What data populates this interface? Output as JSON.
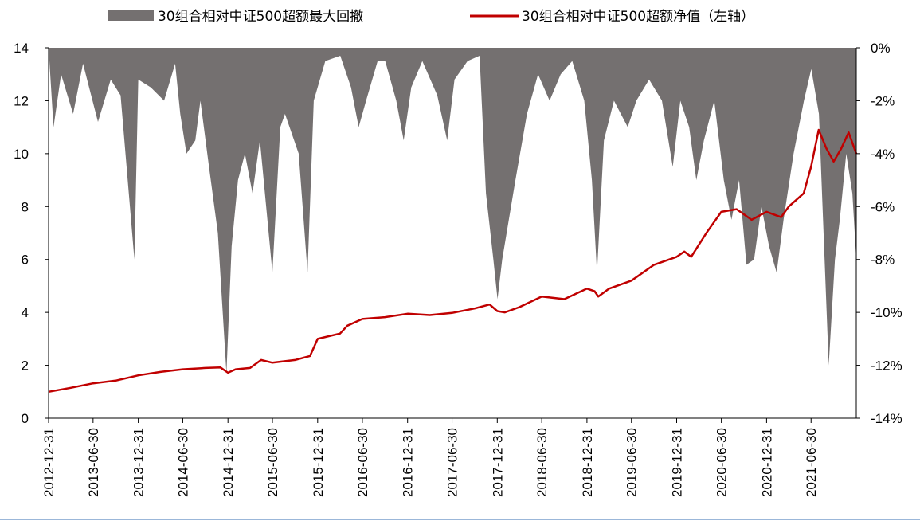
{
  "chart_data": {
    "type": "area+line",
    "colors": {
      "drawdown": "#747070",
      "nav": "#c00000",
      "axis": "#000000"
    },
    "legend": [
      {
        "key": "drawdown",
        "label": "30组合相对中证500超额最大回撤"
      },
      {
        "key": "nav",
        "label": "30组合相对中证500超额净值（左轴）"
      }
    ],
    "left_axis": {
      "min": 0,
      "max": 14,
      "ticks": [
        "0",
        "2",
        "4",
        "6",
        "8",
        "10",
        "12",
        "14"
      ]
    },
    "right_axis": {
      "min": -14,
      "max": 0,
      "ticks": [
        "-14%",
        "-12%",
        "-10%",
        "-8%",
        "-6%",
        "-4%",
        "-2%",
        "0%"
      ]
    },
    "x_axis": {
      "start": "2012-12-31",
      "end": "2021-12-31",
      "ticks": [
        "2012-12-31",
        "2013-06-30",
        "2013-12-31",
        "2014-06-30",
        "2014-12-31",
        "2015-06-30",
        "2015-12-31",
        "2016-06-30",
        "2016-12-31",
        "2017-06-30",
        "2017-12-31",
        "2018-06-30",
        "2018-12-31",
        "2019-06-30",
        "2019-12-31",
        "2020-06-30",
        "2020-12-31",
        "2021-06-30"
      ]
    },
    "series": [
      {
        "key": "nav",
        "name": "30组合相对中证500超额净值（左轴）",
        "points": [
          [
            "2012-12-31",
            1.0
          ],
          [
            "2013-03-31",
            1.15
          ],
          [
            "2013-06-30",
            1.32
          ],
          [
            "2013-09-30",
            1.42
          ],
          [
            "2013-12-31",
            1.62
          ],
          [
            "2014-03-31",
            1.75
          ],
          [
            "2014-06-30",
            1.85
          ],
          [
            "2014-09-30",
            1.9
          ],
          [
            "2014-11-30",
            1.92
          ],
          [
            "2014-12-31",
            1.72
          ],
          [
            "2015-01-31",
            1.85
          ],
          [
            "2015-03-31",
            1.9
          ],
          [
            "2015-05-15",
            2.2
          ],
          [
            "2015-06-30",
            2.1
          ],
          [
            "2015-09-30",
            2.2
          ],
          [
            "2015-11-30",
            2.35
          ],
          [
            "2015-12-31",
            3.0
          ],
          [
            "2016-03-31",
            3.2
          ],
          [
            "2016-04-30",
            3.5
          ],
          [
            "2016-06-30",
            3.75
          ],
          [
            "2016-09-30",
            3.82
          ],
          [
            "2016-12-31",
            3.95
          ],
          [
            "2017-03-31",
            3.9
          ],
          [
            "2017-06-30",
            3.98
          ],
          [
            "2017-09-30",
            4.15
          ],
          [
            "2017-11-30",
            4.3
          ],
          [
            "2017-12-31",
            4.05
          ],
          [
            "2018-01-31",
            4.0
          ],
          [
            "2018-03-31",
            4.2
          ],
          [
            "2018-06-30",
            4.6
          ],
          [
            "2018-09-30",
            4.5
          ],
          [
            "2018-12-31",
            4.9
          ],
          [
            "2019-01-31",
            4.8
          ],
          [
            "2019-02-15",
            4.6
          ],
          [
            "2019-03-31",
            4.9
          ],
          [
            "2019-06-30",
            5.2
          ],
          [
            "2019-09-30",
            5.8
          ],
          [
            "2019-12-31",
            6.1
          ],
          [
            "2020-01-31",
            6.3
          ],
          [
            "2020-02-28",
            6.1
          ],
          [
            "2020-04-30",
            7.0
          ],
          [
            "2020-06-30",
            7.8
          ],
          [
            "2020-08-31",
            7.9
          ],
          [
            "2020-10-31",
            7.5
          ],
          [
            "2020-12-31",
            7.8
          ],
          [
            "2021-02-28",
            7.6
          ],
          [
            "2021-03-31",
            8.0
          ],
          [
            "2021-05-31",
            8.5
          ],
          [
            "2021-06-30",
            9.5
          ],
          [
            "2021-07-31",
            10.9
          ],
          [
            "2021-08-31",
            10.2
          ],
          [
            "2021-09-30",
            9.7
          ],
          [
            "2021-10-31",
            10.2
          ],
          [
            "2021-11-30",
            10.8
          ],
          [
            "2021-12-31",
            10.0
          ]
        ]
      },
      {
        "key": "drawdown",
        "name": "30组合相对中证500超额最大回撤",
        "points": [
          [
            "2012-12-31",
            0
          ],
          [
            "2013-01-20",
            -3.0
          ],
          [
            "2013-02-20",
            -1.0
          ],
          [
            "2013-04-10",
            -2.5
          ],
          [
            "2013-05-20",
            -0.6
          ],
          [
            "2013-07-20",
            -2.8
          ],
          [
            "2013-09-10",
            -1.2
          ],
          [
            "2013-10-20",
            -1.8
          ],
          [
            "2013-12-15",
            -8.0
          ],
          [
            "2013-12-31",
            -1.2
          ],
          [
            "2014-02-20",
            -1.5
          ],
          [
            "2014-04-15",
            -2.0
          ],
          [
            "2014-05-30",
            -0.6
          ],
          [
            "2014-06-20",
            -2.5
          ],
          [
            "2014-07-15",
            -4.0
          ],
          [
            "2014-08-20",
            -3.5
          ],
          [
            "2014-09-10",
            -2.0
          ],
          [
            "2014-10-15",
            -4.5
          ],
          [
            "2014-11-20",
            -7.0
          ],
          [
            "2014-12-25",
            -12.3
          ],
          [
            "2015-01-15",
            -7.5
          ],
          [
            "2015-02-10",
            -5.0
          ],
          [
            "2015-03-10",
            -4.0
          ],
          [
            "2015-04-10",
            -5.5
          ],
          [
            "2015-05-10",
            -3.5
          ],
          [
            "2015-06-30",
            -8.5
          ],
          [
            "2015-08-01",
            -3.0
          ],
          [
            "2015-08-20",
            -2.5
          ],
          [
            "2015-10-15",
            -4.0
          ],
          [
            "2015-11-20",
            -8.5
          ],
          [
            "2015-12-15",
            -2.0
          ],
          [
            "2016-01-31",
            -0.5
          ],
          [
            "2016-04-01",
            -0.3
          ],
          [
            "2016-05-15",
            -1.5
          ],
          [
            "2016-06-15",
            -3.0
          ],
          [
            "2016-07-15",
            -2.0
          ],
          [
            "2016-08-31",
            -0.5
          ],
          [
            "2016-10-01",
            -0.5
          ],
          [
            "2016-11-15",
            -2.0
          ],
          [
            "2016-12-15",
            -3.5
          ],
          [
            "2017-01-15",
            -1.5
          ],
          [
            "2017-03-01",
            -0.5
          ],
          [
            "2017-05-01",
            -1.8
          ],
          [
            "2017-06-10",
            -3.5
          ],
          [
            "2017-07-10",
            -1.2
          ],
          [
            "2017-09-01",
            -0.5
          ],
          [
            "2017-10-20",
            -0.3
          ],
          [
            "2017-11-15",
            -5.5
          ],
          [
            "2017-12-15",
            -8.0
          ],
          [
            "2018-01-01",
            -9.5
          ],
          [
            "2018-01-20",
            -8.0
          ],
          [
            "2018-03-15",
            -5.0
          ],
          [
            "2018-05-01",
            -2.5
          ],
          [
            "2018-06-15",
            -1.0
          ],
          [
            "2018-08-01",
            -2.0
          ],
          [
            "2018-09-15",
            -1.0
          ],
          [
            "2018-11-01",
            -0.5
          ],
          [
            "2018-12-20",
            -2.0
          ],
          [
            "2019-01-20",
            -5.0
          ],
          [
            "2019-02-10",
            -8.5
          ],
          [
            "2019-03-10",
            -3.5
          ],
          [
            "2019-04-20",
            -2.0
          ],
          [
            "2019-06-15",
            -3.0
          ],
          [
            "2019-07-20",
            -2.0
          ],
          [
            "2019-09-10",
            -1.2
          ],
          [
            "2019-11-01",
            -2.0
          ],
          [
            "2019-12-15",
            -4.5
          ],
          [
            "2020-01-15",
            -2.0
          ],
          [
            "2020-02-20",
            -3.0
          ],
          [
            "2020-03-20",
            -5.0
          ],
          [
            "2020-04-20",
            -3.5
          ],
          [
            "2020-06-01",
            -2.0
          ],
          [
            "2020-07-10",
            -5.0
          ],
          [
            "2020-08-10",
            -6.5
          ],
          [
            "2020-09-10",
            -5.0
          ],
          [
            "2020-10-10",
            -8.2
          ],
          [
            "2020-11-10",
            -8.0
          ],
          [
            "2020-12-10",
            -6.0
          ],
          [
            "2021-01-10",
            -7.5
          ],
          [
            "2021-02-10",
            -8.5
          ],
          [
            "2021-03-10",
            -6.5
          ],
          [
            "2021-04-20",
            -4.0
          ],
          [
            "2021-06-01",
            -2.0
          ],
          [
            "2021-07-01",
            -0.8
          ],
          [
            "2021-08-01",
            -2.5
          ],
          [
            "2021-09-10",
            -12.0
          ],
          [
            "2021-10-05",
            -8.0
          ],
          [
            "2021-10-25",
            -6.5
          ],
          [
            "2021-11-20",
            -4.0
          ],
          [
            "2021-12-15",
            -5.5
          ],
          [
            "2021-12-31",
            -8.0
          ]
        ]
      }
    ],
    "grid": false,
    "legend_placement": "top"
  }
}
